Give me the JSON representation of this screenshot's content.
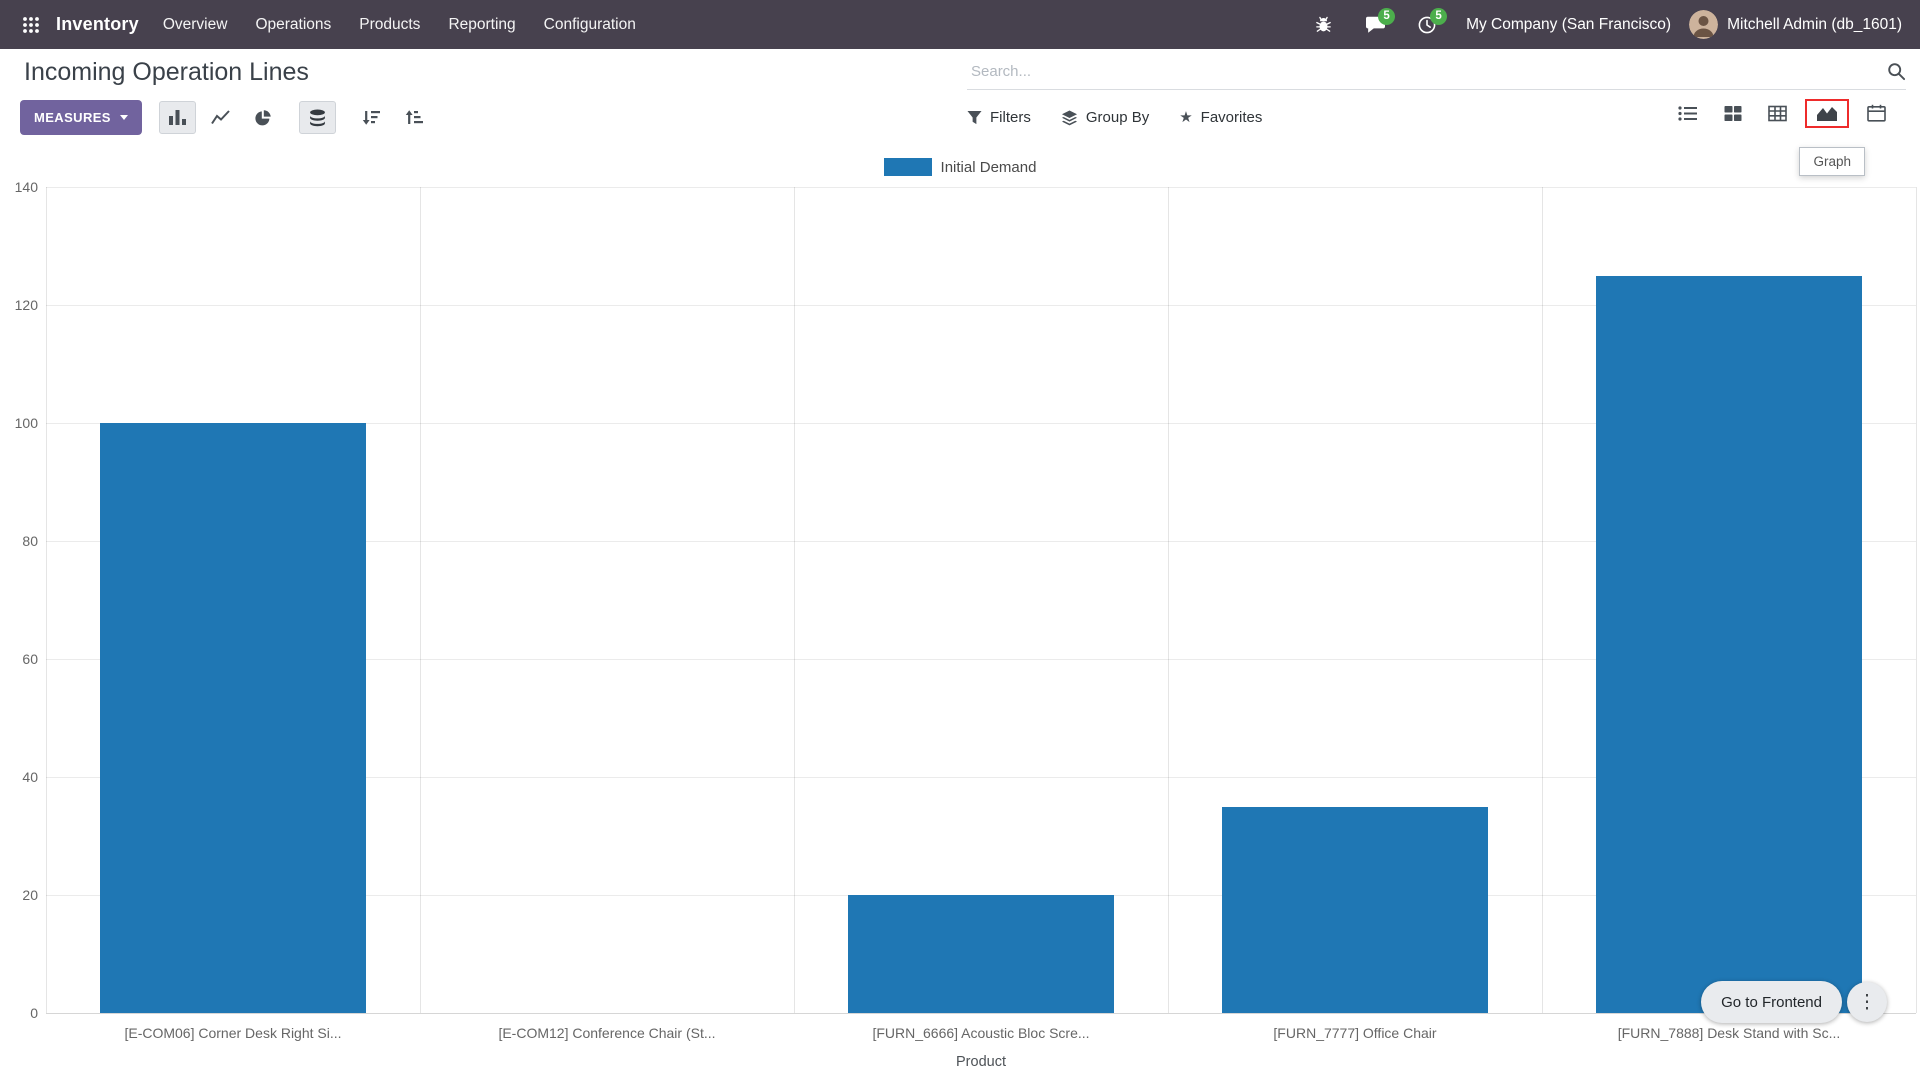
{
  "nav": {
    "app_name": "Inventory",
    "menus": [
      "Overview",
      "Operations",
      "Products",
      "Reporting",
      "Configuration"
    ],
    "messages_badge": "5",
    "activities_badge": "5",
    "company": "My Company (San Francisco)",
    "user": "Mitchell Admin (db_1601)"
  },
  "control_panel": {
    "title": "Incoming Operation Lines",
    "search_placeholder": "Search...",
    "measures_label": "MEASURES",
    "filters_label": "Filters",
    "group_by_label": "Group By",
    "favorites_label": "Favorites",
    "graph_tooltip": "Graph"
  },
  "icons": {
    "star": "★",
    "kebab": "⋮"
  },
  "frontend": {
    "label": "Go to Frontend"
  },
  "colors": {
    "bar_blue": "#1f77b4",
    "badge_green": "#4cae4c",
    "brand_purple": "#71639e",
    "highlight_red": "#ee2b2b"
  },
  "chart_data": {
    "type": "bar",
    "title": "",
    "legend": [
      "Initial Demand"
    ],
    "categories": [
      "[E-COM06] Corner Desk Right Si...",
      "[E-COM12] Conference Chair (St...",
      "[FURN_6666] Acoustic Bloc Scre...",
      "[FURN_7777] Office Chair",
      "[FURN_7888] Desk Stand with Sc..."
    ],
    "values": [
      100,
      0,
      20,
      35,
      125
    ],
    "xlabel": "Product",
    "ylabel": "",
    "ylim": [
      0,
      140
    ],
    "yticks": [
      0,
      20,
      40,
      60,
      80,
      100,
      120,
      140
    ],
    "bar_color": "#1f77b4",
    "grid": true,
    "legend_position": "top"
  }
}
